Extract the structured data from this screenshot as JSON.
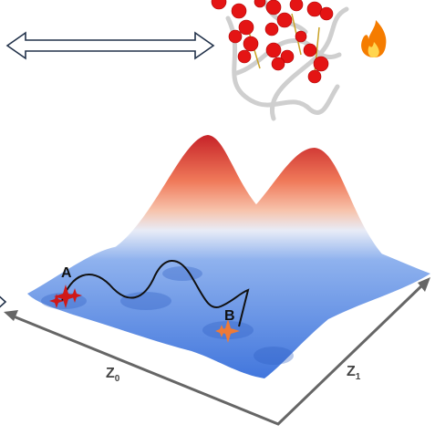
{
  "labels": {
    "start": "A",
    "end": "B"
  },
  "axes": {
    "z0": {
      "main": "Z",
      "sub": "0"
    },
    "z1": {
      "main": "Z",
      "sub": "1"
    }
  }
}
